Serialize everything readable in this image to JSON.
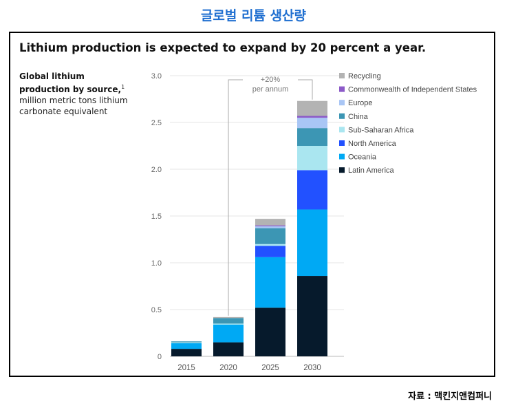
{
  "page_title": "글로벌 리튬 생산량",
  "source_note": "자료 : 맥킨지앤컴퍼니",
  "colors": {
    "Latin America": "#061a2c",
    "Oceania": "#00a9f4",
    "North America": "#2251ff",
    "Sub-Saharan Africa": "#aae6f0",
    "China": "#3c96b4",
    "Europe": "#a9c6f5",
    "Commonwealth of Independent States": "#8c5ac8",
    "Recycling": "#b3b3b3"
  },
  "chart_data": {
    "type": "bar",
    "stacked": true,
    "title": "Lithium production is expected to expand by 20 percent a year.",
    "ylabel_bold": "Global lithium production by source,",
    "ylabel_footnote": "1",
    "ylabel_rest": "million metric tons lithium carbonate equivalent",
    "categories": [
      "2015",
      "2020",
      "2025",
      "2030"
    ],
    "ylim": [
      0,
      3.0
    ],
    "yticks": [
      "0",
      "0.5",
      "1.0",
      "1.5",
      "2.0",
      "2.5",
      "3.0"
    ],
    "ytick_values": [
      0,
      0.5,
      1.0,
      1.5,
      2.0,
      2.5,
      3.0
    ],
    "annotation": {
      "line1": "+20%",
      "line2": "per annum",
      "from": "2020",
      "to": "2030"
    },
    "legend_position": "top-right",
    "series": [
      {
        "name": "Latin America",
        "values": [
          0.08,
          0.15,
          0.52,
          0.86
        ]
      },
      {
        "name": "Oceania",
        "values": [
          0.06,
          0.19,
          0.54,
          0.71
        ]
      },
      {
        "name": "North America",
        "values": [
          0.0,
          0.0,
          0.12,
          0.42
        ]
      },
      {
        "name": "Sub-Saharan Africa",
        "values": [
          0.01,
          0.01,
          0.02,
          0.26
        ]
      },
      {
        "name": "China",
        "values": [
          0.01,
          0.06,
          0.17,
          0.19
        ]
      },
      {
        "name": "Europe",
        "values": [
          0.0,
          0.0,
          0.02,
          0.11
        ]
      },
      {
        "name": "Commonwealth of Independent States",
        "values": [
          0.0,
          0.0,
          0.01,
          0.02
        ]
      },
      {
        "name": "Recycling",
        "values": [
          0.0,
          0.01,
          0.07,
          0.16
        ]
      }
    ],
    "legend_order": [
      "Recycling",
      "Commonwealth of Independent States",
      "Europe",
      "China",
      "Sub-Saharan Africa",
      "North America",
      "Oceania",
      "Latin America"
    ]
  }
}
